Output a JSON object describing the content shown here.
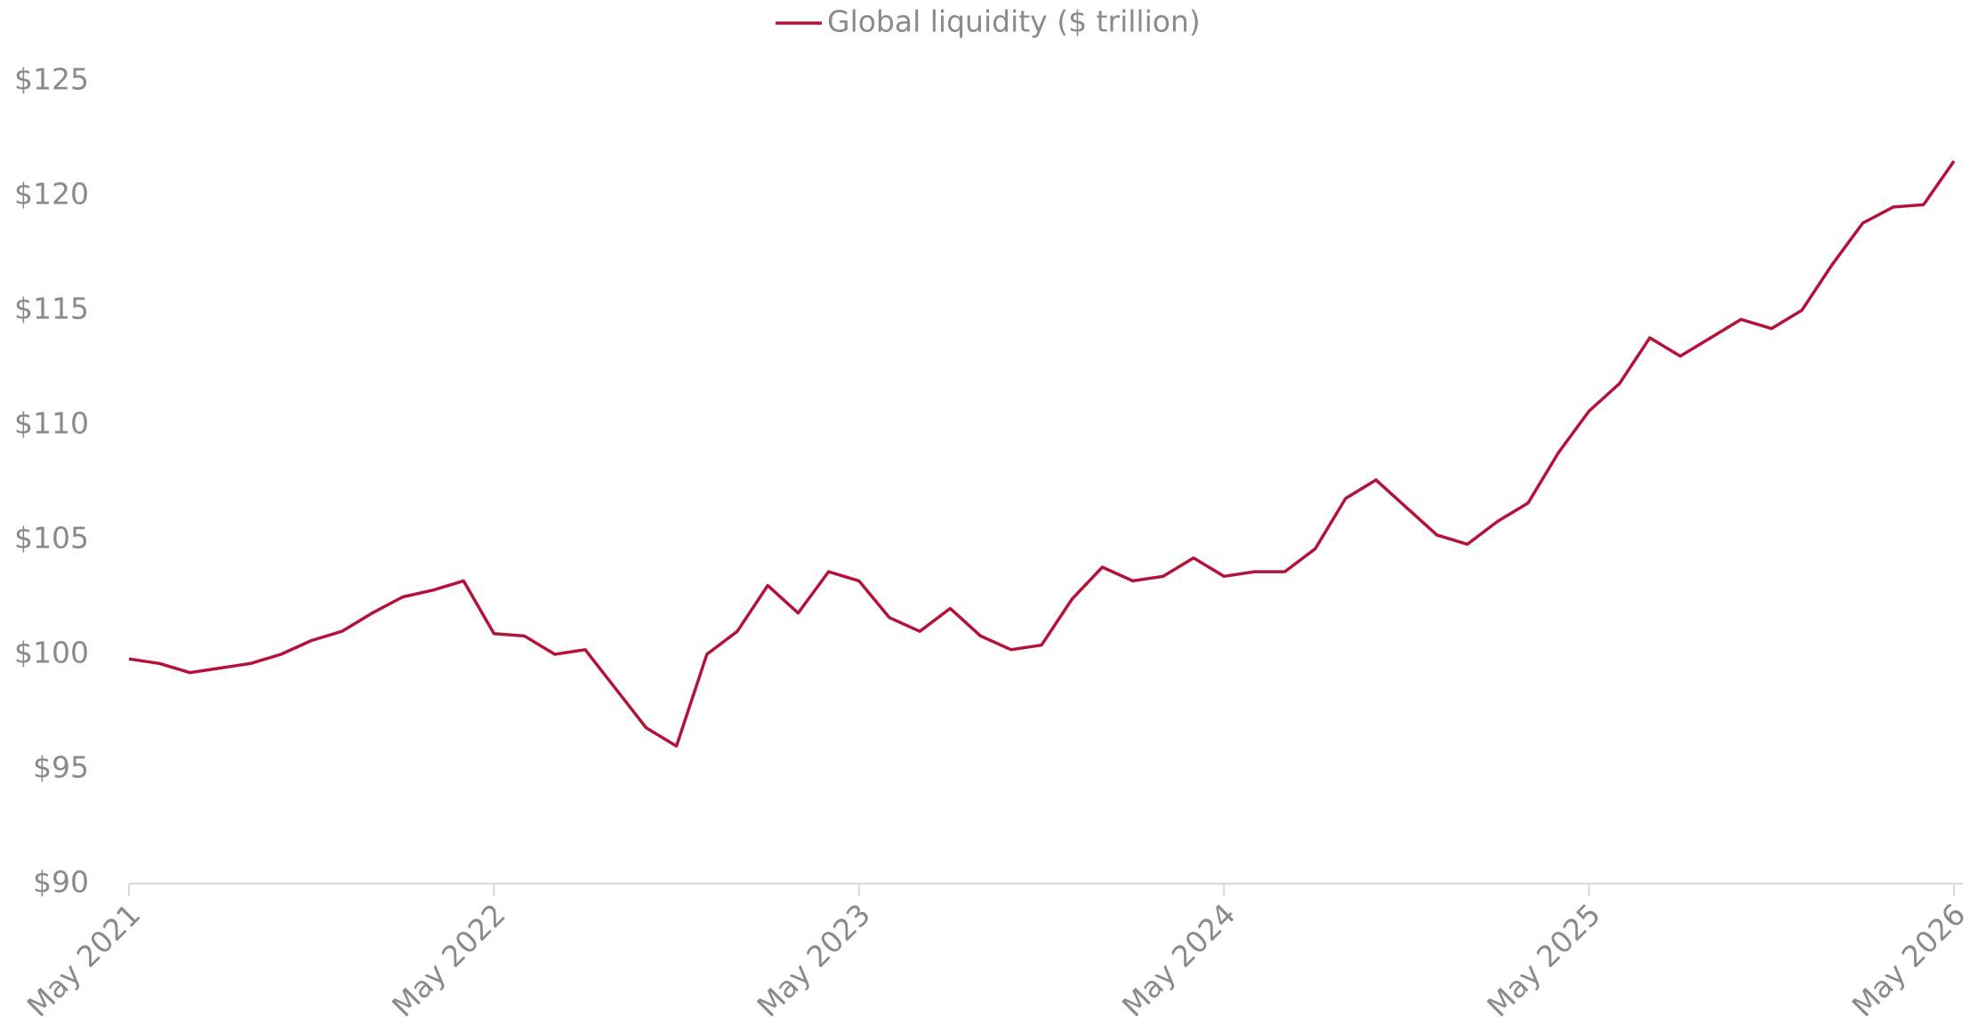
{
  "chart_data": {
    "type": "line",
    "legend_position": "top",
    "series": [
      {
        "name": "Global liquidity ($ trillion)",
        "color": "#b5123a",
        "values": [
          99.8,
          99.6,
          99.2,
          99.4,
          99.6,
          100.0,
          100.6,
          101.0,
          101.8,
          102.5,
          102.8,
          103.2,
          100.9,
          100.8,
          100.0,
          100.2,
          98.5,
          96.8,
          96.0,
          100.0,
          101.0,
          103.0,
          101.8,
          103.6,
          103.2,
          101.6,
          101.0,
          102.0,
          100.8,
          100.2,
          100.4,
          102.4,
          103.8,
          103.2,
          103.4,
          104.2,
          103.4,
          103.6,
          103.6,
          104.6,
          106.8,
          107.6,
          106.4,
          105.2,
          104.8,
          105.8,
          106.6,
          108.8,
          110.6,
          111.8,
          113.8,
          113.0,
          113.8,
          114.6,
          114.2,
          115.0,
          117.0,
          118.8,
          119.5,
          119.6,
          121.5
        ]
      }
    ],
    "x": [
      "2021-05",
      "2021-06",
      "2021-07",
      "2021-08",
      "2021-09",
      "2021-10",
      "2021-11",
      "2021-12",
      "2022-01",
      "2022-02",
      "2022-03",
      "2022-04",
      "2022-05",
      "2022-06",
      "2022-07",
      "2022-08",
      "2022-09",
      "2022-10",
      "2022-11",
      "2022-12",
      "2023-01",
      "2023-02",
      "2023-03",
      "2023-04",
      "2023-05",
      "2023-06",
      "2023-07",
      "2023-08",
      "2023-09",
      "2023-10",
      "2023-11",
      "2023-12",
      "2024-01",
      "2024-02",
      "2024-03",
      "2024-04",
      "2024-05",
      "2024-06",
      "2024-07",
      "2024-08",
      "2024-09",
      "2024-10",
      "2024-11",
      "2024-12",
      "2025-01",
      "2025-02",
      "2025-03",
      "2025-04",
      "2025-05",
      "2025-06",
      "2025-07",
      "2025-08",
      "2025-09",
      "2025-10",
      "2025-11",
      "2025-12",
      "2026-01",
      "2026-02",
      "2026-03",
      "2026-04",
      "2026-05"
    ],
    "xlim": [
      "2021-05",
      "2026-05"
    ],
    "xticks": [
      {
        "value": "2021-05",
        "label": "May 2021"
      },
      {
        "value": "2022-05",
        "label": "May 2022"
      },
      {
        "value": "2023-05",
        "label": "May 2023"
      },
      {
        "value": "2024-05",
        "label": "May 2024"
      },
      {
        "value": "2025-05",
        "label": "May 2025"
      },
      {
        "value": "2026-05",
        "label": "May 2026"
      }
    ],
    "ylim": [
      90,
      125
    ],
    "yticks": [
      {
        "value": 90,
        "label": "$90"
      },
      {
        "value": 95,
        "label": "$95"
      },
      {
        "value": 100,
        "label": "$100"
      },
      {
        "value": 105,
        "label": "$105"
      },
      {
        "value": 110,
        "label": "$110"
      },
      {
        "value": 115,
        "label": "$115"
      },
      {
        "value": 120,
        "label": "$120"
      },
      {
        "value": 125,
        "label": "$125"
      }
    ],
    "grid": false
  }
}
